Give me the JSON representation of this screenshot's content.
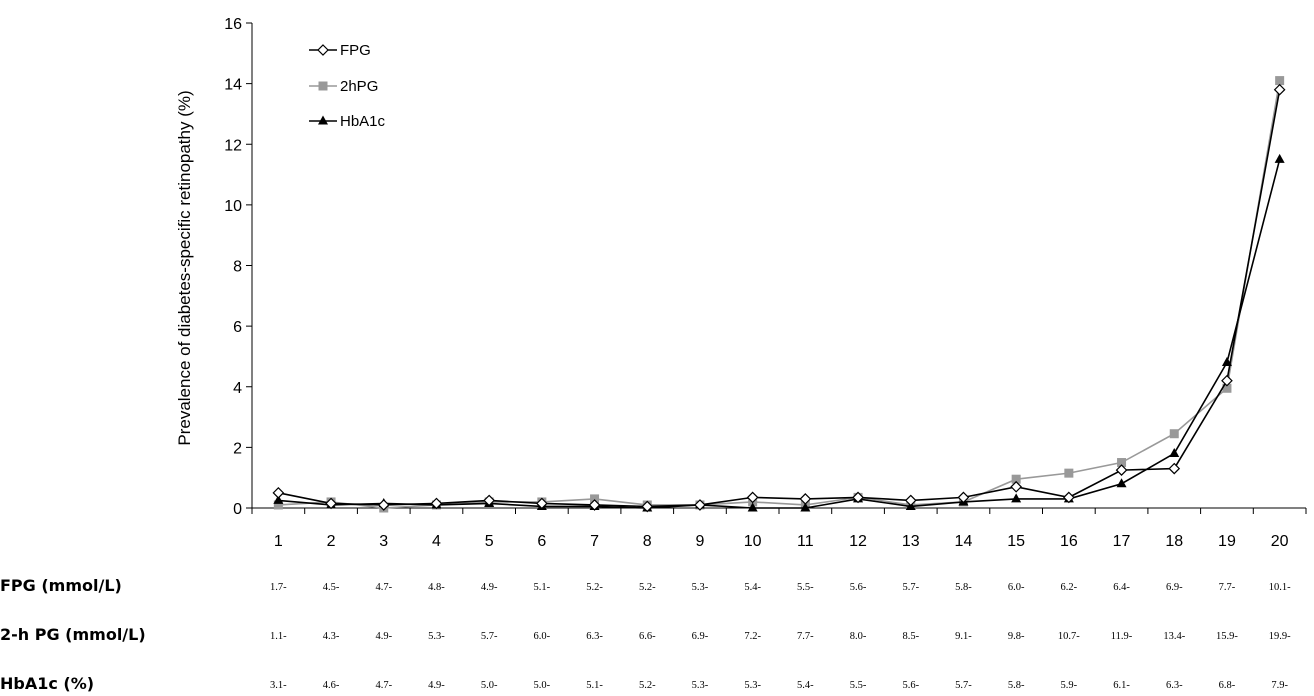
{
  "chart_data": {
    "type": "line",
    "ylabel": "Prevalence of diabetes-specific retinopathy (%)",
    "xlabel": "",
    "ylim": [
      0,
      16
    ],
    "yticks": [
      0,
      2,
      4,
      6,
      8,
      10,
      12,
      14,
      16
    ],
    "categories": [
      "1",
      "2",
      "3",
      "4",
      "5",
      "6",
      "7",
      "8",
      "9",
      "10",
      "11",
      "12",
      "13",
      "14",
      "15",
      "16",
      "17",
      "18",
      "19",
      "20"
    ],
    "legend_position": "top-left",
    "grid": false,
    "series": [
      {
        "name": "FPG",
        "color": "#000000",
        "marker": "diamond-open",
        "values": [
          0.5,
          0.15,
          0.1,
          0.15,
          0.25,
          0.15,
          0.1,
          0.05,
          0.1,
          0.35,
          0.3,
          0.35,
          0.25,
          0.35,
          0.7,
          0.35,
          1.25,
          1.3,
          4.2,
          13.8
        ]
      },
      {
        "name": "2hPG",
        "color": "#999999",
        "marker": "square",
        "values": [
          0.1,
          0.2,
          0.0,
          0.1,
          0.2,
          0.2,
          0.3,
          0.1,
          0.1,
          0.2,
          0.1,
          0.35,
          0.1,
          0.2,
          0.95,
          1.15,
          1.5,
          2.45,
          3.95,
          14.1
        ]
      },
      {
        "name": "HbA1c",
        "color": "#000000",
        "marker": "triangle",
        "values": [
          0.25,
          0.1,
          0.15,
          0.1,
          0.15,
          0.05,
          0.05,
          0.0,
          0.1,
          0.0,
          0.0,
          0.3,
          0.05,
          0.2,
          0.3,
          0.3,
          0.8,
          1.8,
          4.8,
          11.5
        ]
      }
    ],
    "table_rows": [
      {
        "label": "FPG (mmol/L)",
        "values": [
          "1.7-",
          "4.5-",
          "4.7-",
          "4.8-",
          "4.9-",
          "5.1-",
          "5.2-",
          "5.2-",
          "5.3-",
          "5.4-",
          "5.5-",
          "5.6-",
          "5.7-",
          "5.8-",
          "6.0-",
          "6.2-",
          "6.4-",
          "6.9-",
          "7.7-",
          "10.1-"
        ]
      },
      {
        "label": "2-h PG (mmol/L)",
        "values": [
          "1.1-",
          "4.3-",
          "4.9-",
          "5.3-",
          "5.7-",
          "6.0-",
          "6.3-",
          "6.6-",
          "6.9-",
          "7.2-",
          "7.7-",
          "8.0-",
          "8.5-",
          "9.1-",
          "9.8-",
          "10.7-",
          "11.9-",
          "13.4-",
          "15.9-",
          "19.9-"
        ]
      },
      {
        "label": "HbA1c (%)",
        "values": [
          "3.1-",
          "4.6-",
          "4.7-",
          "4.9-",
          "5.0-",
          "5.0-",
          "5.1-",
          "5.2-",
          "5.3-",
          "5.3-",
          "5.4-",
          "5.5-",
          "5.6-",
          "5.7-",
          "5.8-",
          "5.9-",
          "6.1-",
          "6.3-",
          "6.8-",
          "7.9-"
        ]
      }
    ]
  }
}
